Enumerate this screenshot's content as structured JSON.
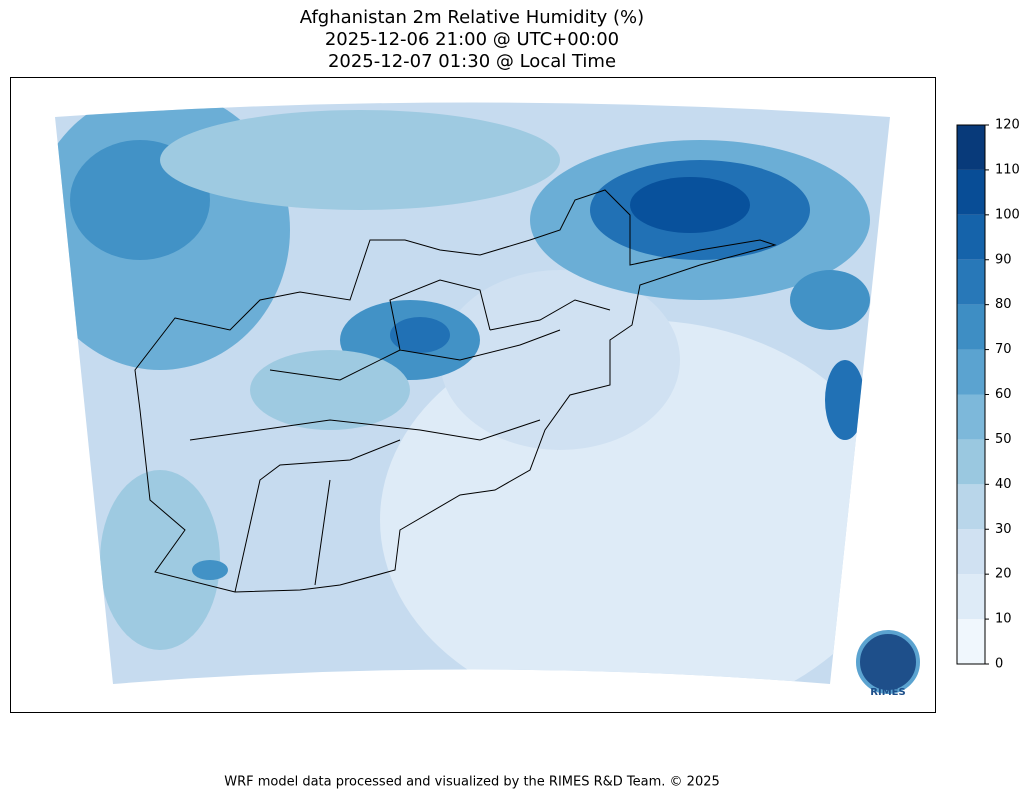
{
  "header": {
    "title_lines": [
      "Afghanistan 2m Relative Humidity (%)",
      "2025-12-06 21:00 @ UTC+00:00",
      "2025-12-07 01:30 @ Local Time"
    ]
  },
  "colorbar": {
    "ticks": [
      0,
      10,
      20,
      30,
      40,
      50,
      60,
      70,
      80,
      90,
      100,
      110,
      120
    ],
    "colors": [
      "#f0f7fd",
      "#deebf7",
      "#d0e1f2",
      "#b9d6ea",
      "#9ac8e0",
      "#7db8da",
      "#5ba3d0",
      "#3e8ec4",
      "#2878b8",
      "#1563aa",
      "#084d96",
      "#083a7a"
    ]
  },
  "logo": {
    "text": "RIMES"
  },
  "footer": {
    "text": "WRF model data processed and visualized by the RIMES R&D Team. © 2025"
  }
}
